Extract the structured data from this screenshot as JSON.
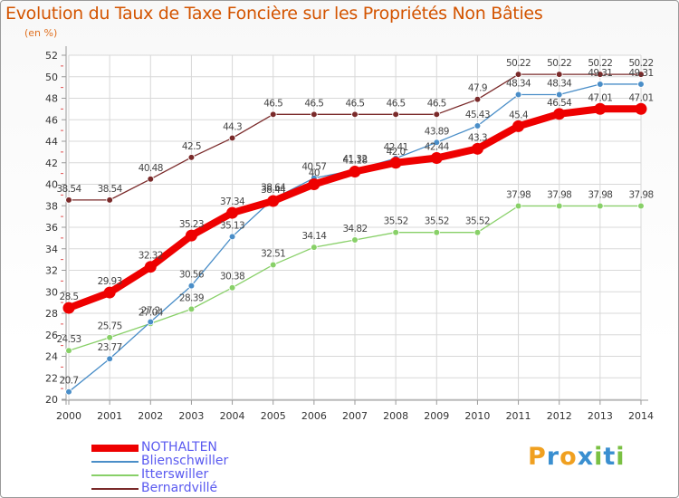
{
  "title": "Evolution du Taux de Taxe Foncière sur les Propriétés Non Bâties",
  "subtitle": "(en %)",
  "logo": {
    "text": "Proxiti",
    "letters": [
      {
        "ch": "P",
        "color": "#f0a020"
      },
      {
        "ch": "r",
        "color": "#3a8fd0"
      },
      {
        "ch": "o",
        "color": "#f0a020"
      },
      {
        "ch": "x",
        "color": "#3a8fd0"
      },
      {
        "ch": "i",
        "color": "#7ac043"
      },
      {
        "ch": "t",
        "color": "#3a8fd0"
      },
      {
        "ch": "i",
        "color": "#7ac043"
      }
    ]
  },
  "chart_data": {
    "type": "line",
    "title": "Evolution du Taux de Taxe Foncière sur les Propriétés Non Bâties",
    "ylabel": "(en %)",
    "xlabel": "",
    "ylim": [
      20,
      52
    ],
    "yticks": [
      20,
      22,
      24,
      26,
      28,
      30,
      32,
      34,
      36,
      38,
      40,
      42,
      44,
      46,
      48,
      50,
      52
    ],
    "grid": true,
    "legend": "bottom-left",
    "x": [
      "2000",
      "2001",
      "2002",
      "2003",
      "2004",
      "2005",
      "2006",
      "2007",
      "2008",
      "2009",
      "2010",
      "2011",
      "2012",
      "2013",
      "2014"
    ],
    "series": [
      {
        "name": "Bernardvillé",
        "color": "#7a2a2a",
        "values": [
          38.54,
          38.54,
          40.48,
          42.5,
          44.3,
          46.5,
          46.5,
          46.5,
          46.5,
          46.5,
          47.9,
          50.22,
          50.22,
          50.22,
          50.22
        ],
        "labels": [
          "38.54",
          "38.54",
          "40.48",
          "42.5",
          "44.3",
          "46.5",
          "46.5",
          "46.5",
          "46.5",
          "46.5",
          "47.9",
          "50.22",
          "50.22",
          "50.22",
          "50.22"
        ]
      },
      {
        "name": "Itterswiller",
        "color": "#88d068",
        "values": [
          24.53,
          25.75,
          27.04,
          28.39,
          30.38,
          32.51,
          34.14,
          34.82,
          35.52,
          35.52,
          35.52,
          37.98,
          37.98,
          37.98,
          37.98
        ],
        "labels": [
          "24.53",
          "25.75",
          "27.04",
          "28.39",
          "30.38",
          "32.51",
          "34.14",
          "34.82",
          "35.52",
          "35.52",
          "35.52",
          "37.98",
          "37.98",
          "37.98",
          "37.98"
        ]
      },
      {
        "name": "Blienschwiller",
        "color": "#4a8ec8",
        "values": [
          20.7,
          23.77,
          27.2,
          30.56,
          35.13,
          38.64,
          40.57,
          41.32,
          42.41,
          43.89,
          45.43,
          48.34,
          48.34,
          49.31,
          49.31
        ],
        "labels": [
          "20.7",
          "23.77",
          "27.2",
          "30.56",
          "35.13",
          "38.64",
          "40.57",
          "41.32",
          "42.41",
          "43.89",
          "45.43",
          "48.34",
          "48.34",
          "49.31",
          "49.31"
        ]
      },
      {
        "name": "NOTHALTEN",
        "color": "#ee0000",
        "values": [
          28.5,
          29.93,
          32.32,
          35.23,
          37.34,
          38.44,
          40.0,
          41.18,
          42.0,
          42.44,
          43.3,
          45.4,
          46.54,
          47.01,
          47.01
        ],
        "labels": [
          "28.5",
          "29.93",
          "32.32",
          "35.23",
          "37.34",
          "38.44",
          "40",
          "41.18",
          "42.0",
          "42.44",
          "43.3",
          "45.4",
          "46.54",
          "47.01",
          "47.01"
        ]
      }
    ],
    "legend_order": [
      "NOTHALTEN",
      "Blienschwiller",
      "Itterswiller",
      "Bernardvillé"
    ]
  }
}
